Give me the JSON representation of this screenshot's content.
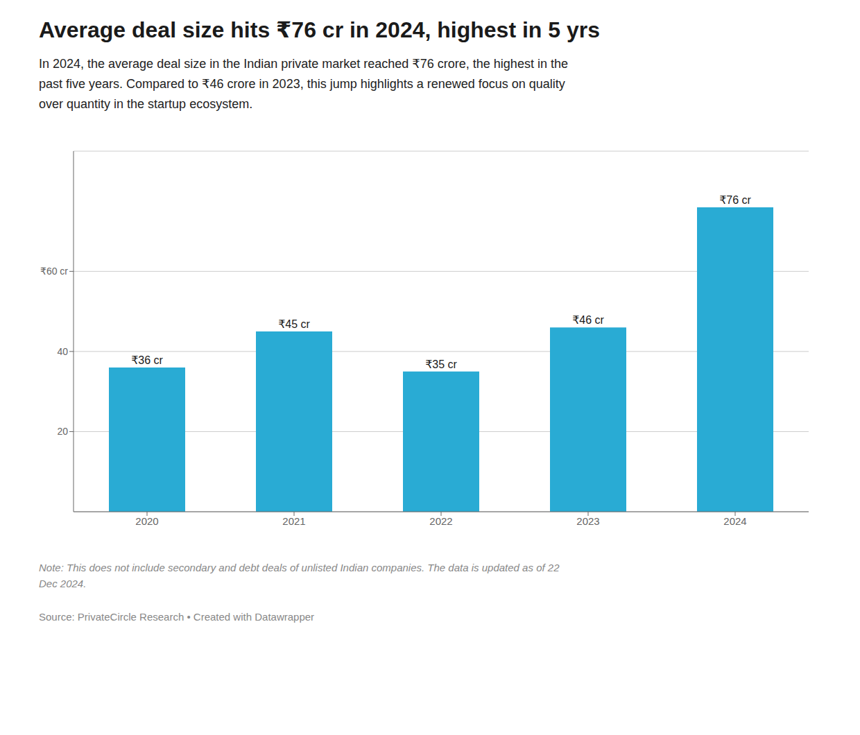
{
  "chart_data": {
    "type": "bar",
    "title": "Average deal size hits ₹76 cr in 2024, highest in 5 yrs",
    "subtitle": "In 2024, the average deal size in the Indian private market reached ₹76 crore, the highest in the\npast five years. Compared to ₹46 crore in 2023, this jump highlights a renewed focus on quality\nover quantity in the startup ecosystem.",
    "categories": [
      "2020",
      "2021",
      "2022",
      "2023",
      "2024"
    ],
    "values": [
      36,
      45,
      35,
      46,
      76
    ],
    "value_labels": [
      "₹36 cr",
      "₹45 cr",
      "₹35 cr",
      "₹46 cr",
      "₹76 cr"
    ],
    "data_labels": true,
    "color": "#29ABD4",
    "ylim": [
      0,
      90
    ],
    "yticks": [
      20,
      40,
      {
        "value": 60,
        "label": "₹60 cr"
      }
    ],
    "grid": true,
    "note": "Note: This does not include secondary and debt deals of unlisted Indian companies. The data is updated as of 22\nDec 2024.",
    "source": "Source: PrivateCircle Research  •  Created with Datawrapper"
  }
}
